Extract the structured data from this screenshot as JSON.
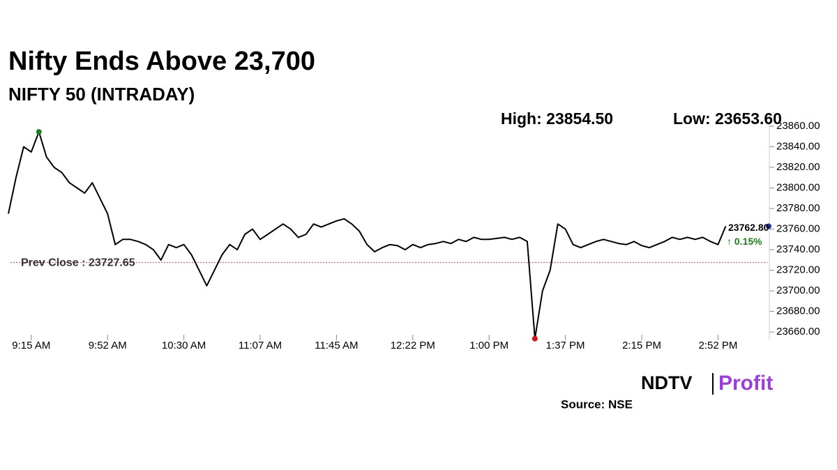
{
  "chart_data": {
    "type": "line",
    "title": "Nifty Ends Above 23,700",
    "subtitle": "NIFTY 50 (INTRADAY)",
    "high_text": "High: 23854.50",
    "low_text": "Low: 23653.60",
    "categories": [
      null,
      null,
      null,
      "9:15 AM",
      null,
      null,
      null,
      null,
      null,
      null,
      null,
      null,
      null,
      "9:52 AM",
      null,
      null,
      null,
      null,
      null,
      null,
      null,
      null,
      null,
      "10:30 AM",
      null,
      null,
      null,
      null,
      null,
      null,
      null,
      null,
      null,
      "11:07 AM",
      null,
      null,
      null,
      null,
      null,
      null,
      null,
      null,
      null,
      "11:45 AM",
      null,
      null,
      null,
      null,
      null,
      null,
      null,
      null,
      null,
      "12:22 PM",
      null,
      null,
      null,
      null,
      null,
      null,
      null,
      null,
      null,
      "1:00 PM",
      null,
      null,
      null,
      null,
      null,
      null,
      null,
      null,
      null,
      "1:37 PM",
      null,
      null,
      null,
      null,
      null,
      null,
      null,
      null,
      null,
      "2:15 PM",
      null,
      null,
      null,
      null,
      null,
      null,
      null,
      null,
      null,
      "2:52 PM",
      null
    ],
    "values": [
      23775,
      23810,
      23840,
      23835,
      23854.5,
      23830,
      23820,
      23815,
      23805,
      23800,
      23795,
      23805,
      23790,
      23775,
      23745,
      23750,
      23750,
      23748,
      23745,
      23740,
      23730,
      23745,
      23742,
      23745,
      23735,
      23720,
      23705,
      23720,
      23735,
      23745,
      23740,
      23755,
      23760,
      23750,
      23755,
      23760,
      23765,
      23760,
      23752,
      23755,
      23765,
      23762,
      23765,
      23768,
      23770,
      23765,
      23758,
      23745,
      23738,
      23742,
      23745,
      23744,
      23740,
      23745,
      23742,
      23745,
      23746,
      23748,
      23746,
      23750,
      23748,
      23752,
      23750,
      23750,
      23751,
      23752,
      23750,
      23752,
      23748,
      23653.6,
      23700,
      23720,
      23765,
      23760,
      23745,
      23742,
      23745,
      23748,
      23750,
      23748,
      23746,
      23745,
      23748,
      23744,
      23742,
      23745,
      23748,
      23752,
      23750,
      23752,
      23750,
      23752,
      23748,
      23745,
      23762.8
    ],
    "color": "#000000",
    "high_color": "#1a7f1a",
    "low_color": "#e01010",
    "last_color": "#1f2f9e",
    "ylim": [
      23652,
      23862
    ],
    "yticks": [
      {
        "value": 23660,
        "label": "23660.00"
      },
      {
        "value": 23680,
        "label": "23680.00"
      },
      {
        "value": 23700,
        "label": "23700.00"
      },
      {
        "value": 23720,
        "label": "23720.00"
      },
      {
        "value": 23740,
        "label": "23740.00"
      },
      {
        "value": 23760,
        "label": "23760.00"
      },
      {
        "value": 23780,
        "label": "23780.00"
      },
      {
        "value": 23800,
        "label": "23800.00"
      },
      {
        "value": 23820,
        "label": "23820.00"
      },
      {
        "value": 23840,
        "label": "23840.00"
      },
      {
        "value": 23860,
        "label": "23860.00"
      }
    ],
    "prev_close": {
      "value": 23727.65,
      "label": "Prev Close : 23727.65",
      "color": "#d04040"
    },
    "last_label": "23762.80",
    "change_label": "↑ 0.15%",
    "change_color": "#1a7f1a",
    "logo": [
      "NDTV",
      "Profit"
    ],
    "source": "Source: NSE"
  }
}
